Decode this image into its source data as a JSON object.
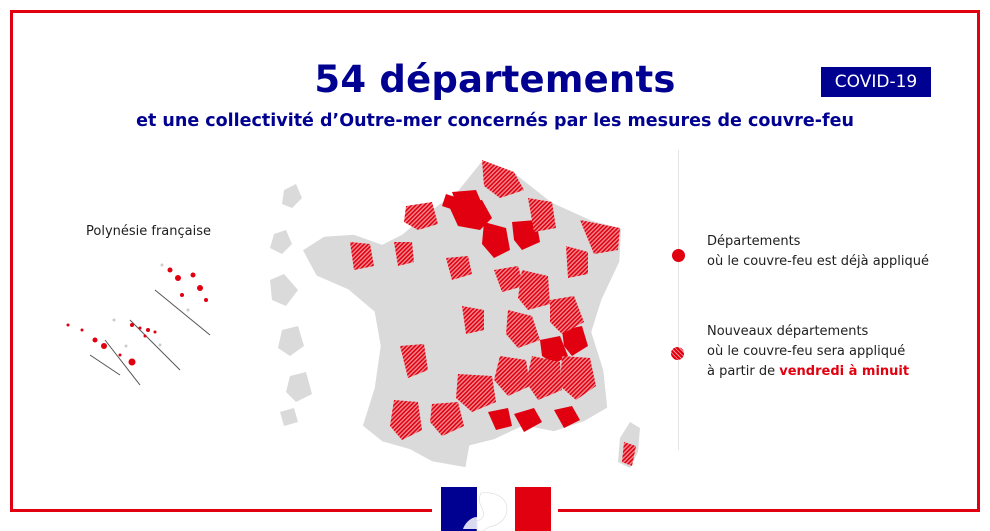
{
  "header": {
    "title": "54 départements",
    "subtitle": "et une collectivité d’Outre-mer concernés par les mesures de couvre-feu",
    "badge": "COVID-19"
  },
  "inset": {
    "label": "Polynésie française"
  },
  "legend": {
    "items": [
      {
        "line1": "Départements",
        "line2": "où le couvre-feu est déjà appliqué",
        "style": "solid"
      },
      {
        "line1": "Nouveaux départements",
        "line2": "où le couvre-feu sera appliqué",
        "line3_prefix": "à partir de ",
        "line3_highlight": "vendredi à minuit",
        "style": "hatched"
      }
    ]
  },
  "colors": {
    "brand_blue": "#000091",
    "alert_red": "#e1000f",
    "inactive_gray": "#dadada"
  },
  "icons": {
    "map": "france-departments-map",
    "logo": "marianne-republique-francaise-logo"
  }
}
